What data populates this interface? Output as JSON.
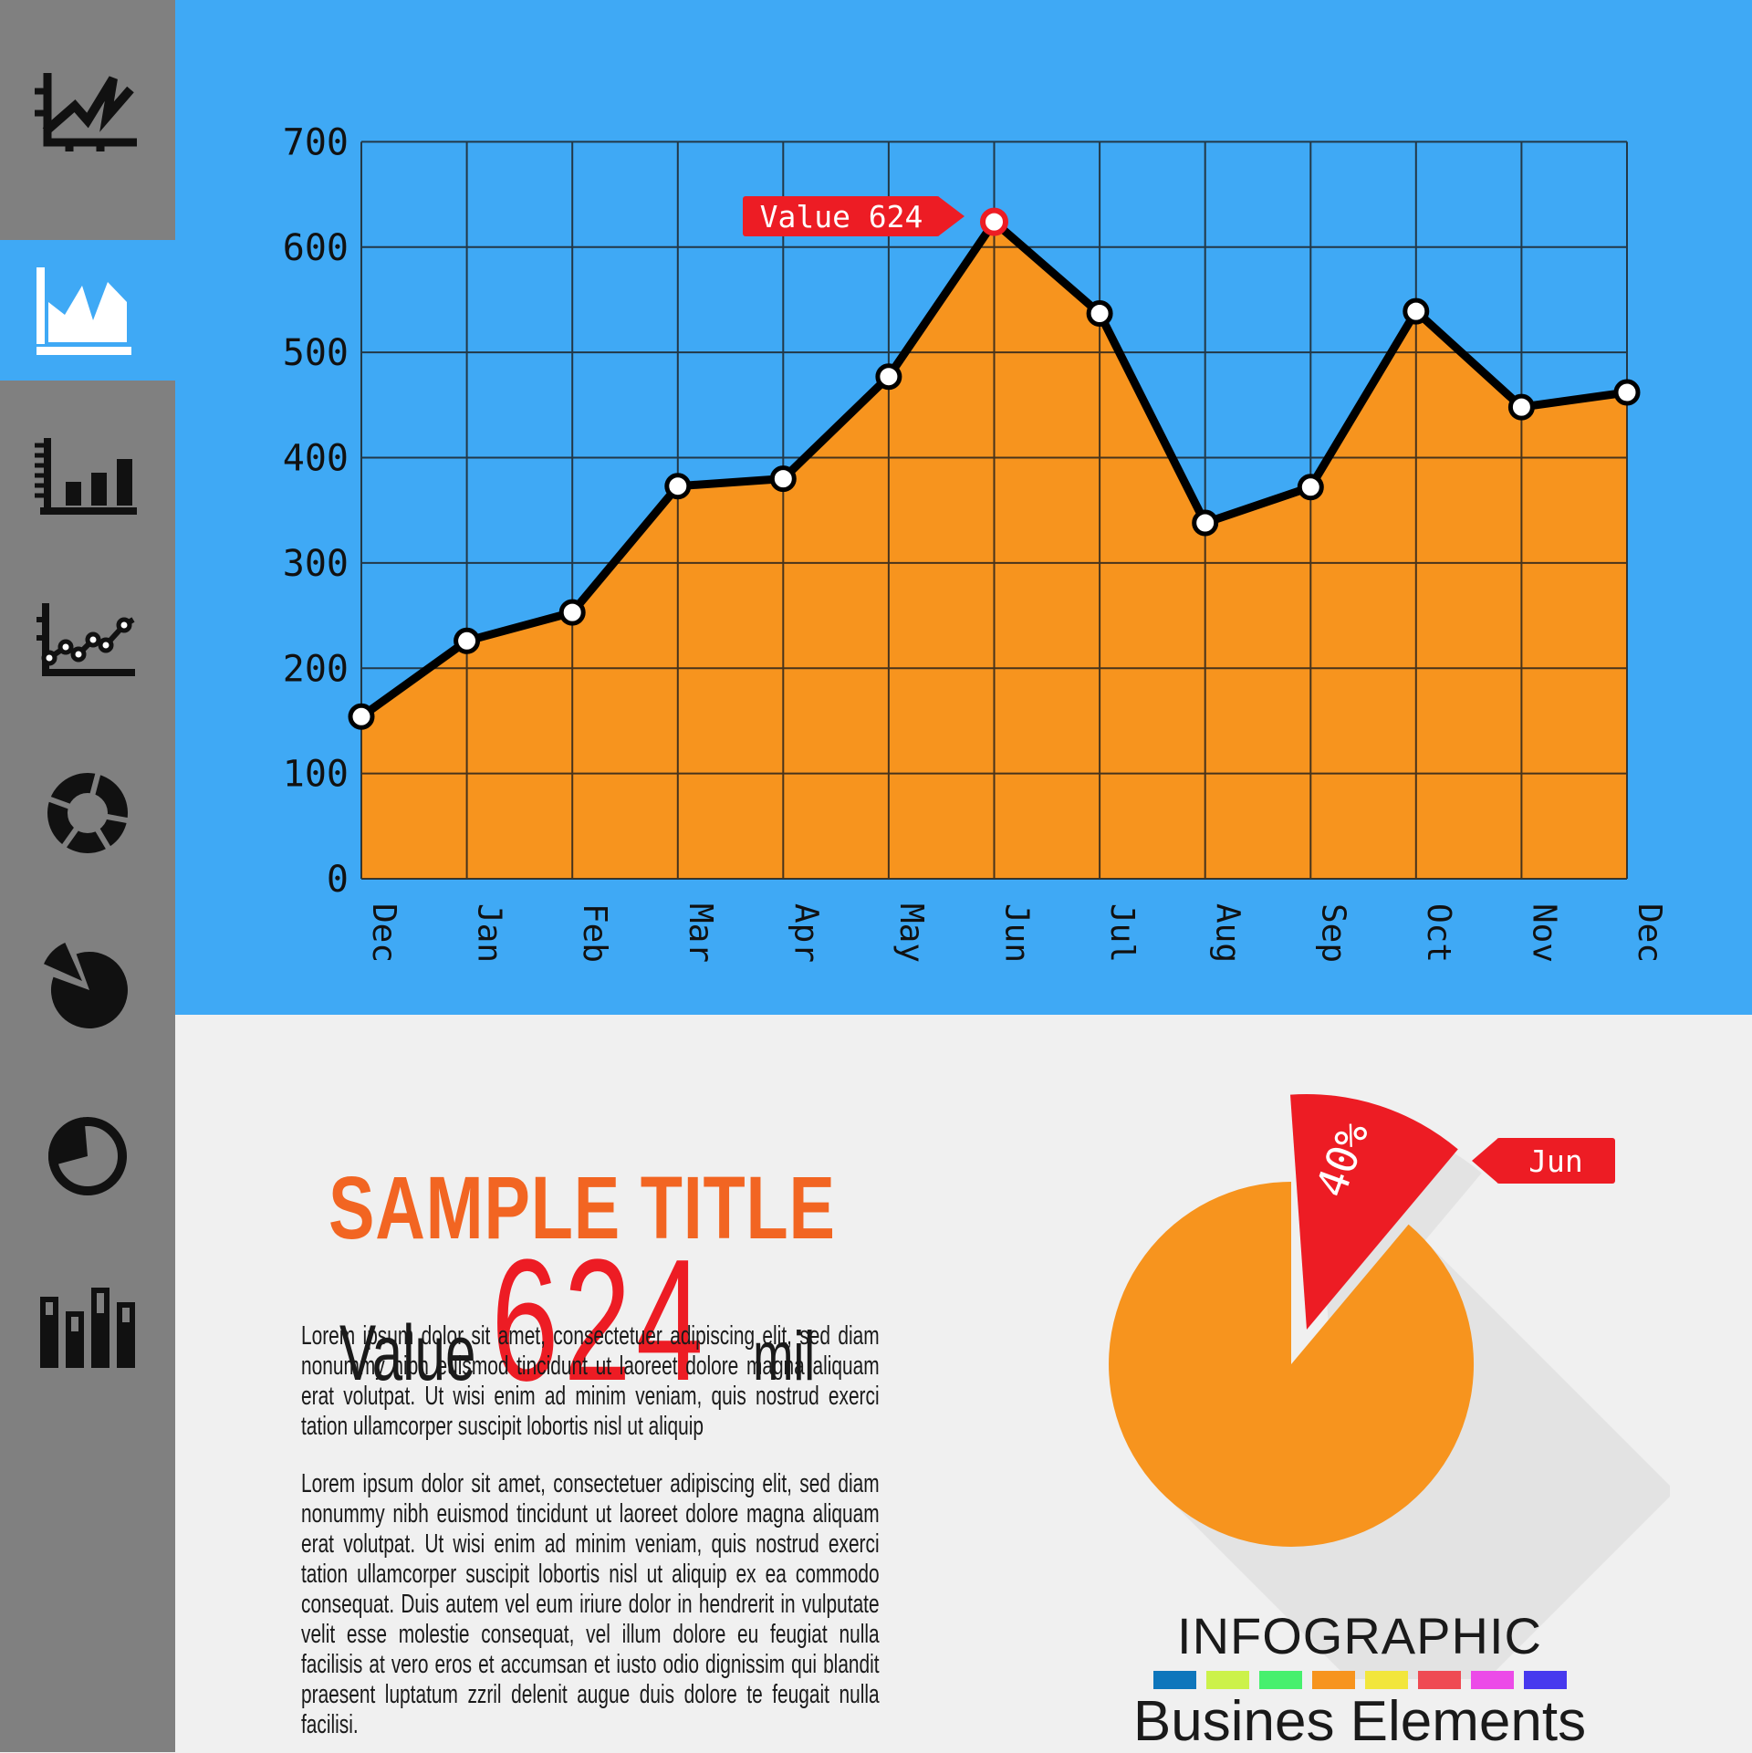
{
  "page": {
    "background": "#F0F0F0",
    "section_blue": "#3FA9F5",
    "sidebar_gray": "#808080",
    "accent_orange": "#F7941E",
    "accent_red": "#ED1C24",
    "title_orange": "#F26522",
    "text_color": "#1a1a1a"
  },
  "sidebar": {
    "items": [
      {
        "icon": "trend-line-chart-icon",
        "selected": false
      },
      {
        "icon": "area-chart-icon",
        "selected": true
      },
      {
        "icon": "bar-chart-icon",
        "selected": false
      },
      {
        "icon": "dot-line-chart-icon",
        "selected": false
      },
      {
        "icon": "donut-chart-icon",
        "selected": false
      },
      {
        "icon": "pie-chart-icon",
        "selected": false
      },
      {
        "icon": "pie-outline-chart-icon",
        "selected": false
      },
      {
        "icon": "column-chart-icon",
        "selected": false
      }
    ]
  },
  "chart_data": [
    {
      "type": "area",
      "title": "",
      "xlabel": "",
      "ylabel": "",
      "categories": [
        "Dec",
        "Jan",
        "Feb",
        "Mar",
        "Apr",
        "May",
        "Jun",
        "Jul",
        "Aug",
        "Sep",
        "Oct",
        "Nov",
        "Dec"
      ],
      "values": [
        154,
        226,
        253,
        373,
        380,
        477,
        624,
        537,
        338,
        372,
        539,
        448,
        462
      ],
      "ylim": [
        0,
        700
      ],
      "ytick": 100,
      "grid": true,
      "legend": "none",
      "annotation": {
        "label": "Value 624",
        "index": 6,
        "value": 624
      },
      "line_color": "#000000",
      "fill_color": "#F7941E",
      "plot_bg": "#3FA9F5"
    },
    {
      "type": "pie",
      "title": "",
      "slices": [
        {
          "label": "Jun",
          "text": "40%",
          "value": 40,
          "color": "#ED1C24",
          "exploded": true
        },
        {
          "label": "",
          "text": "",
          "value": 60,
          "color": "#F7941E",
          "exploded": false
        }
      ],
      "legend": "none"
    }
  ],
  "content": {
    "title": "SAMPLE TITLE",
    "value_prefix": "Value",
    "value_number": "624",
    "value_suffix": "mil",
    "paragraphs": [
      "Lorem ipsum dolor sit amet, consectetuer adipiscing elit, sed diam nonummy nibh euismod tincidunt ut laoreet dolore magna aliquam erat volutpat. Ut wisi enim ad minim veniam, quis nostrud exerci tation ullamcorper suscipit lobortis nisl ut aliquip",
      "Lorem ipsum dolor sit amet, consectetuer adipiscing elit, sed diam nonummy nibh euismod tincidunt ut laoreet dolore magna aliquam erat volutpat. Ut wisi enim ad minim veniam, quis nostrud exerci tation ullamcorper suscipit lobortis nisl ut aliquip ex ea commodo consequat. Duis autem vel eum iriure dolor in hendrerit in vulputate velit esse molestie consequat, vel illum dolore eu feugiat nulla facilisis at vero eros et accumsan et iusto odio dignissim qui blandit praesent luptatum zzril delenit augue duis dolore te feugait nulla facilisi."
    ]
  },
  "footer": {
    "title": "INFOGRAPHIC",
    "subtitle": "Busines Elements",
    "swatches": [
      "#0E76BC",
      "#CCF24A",
      "#47F06E",
      "#F7941E",
      "#F2E63C",
      "#EF4B53",
      "#EC4BE8",
      "#4739EE"
    ]
  }
}
